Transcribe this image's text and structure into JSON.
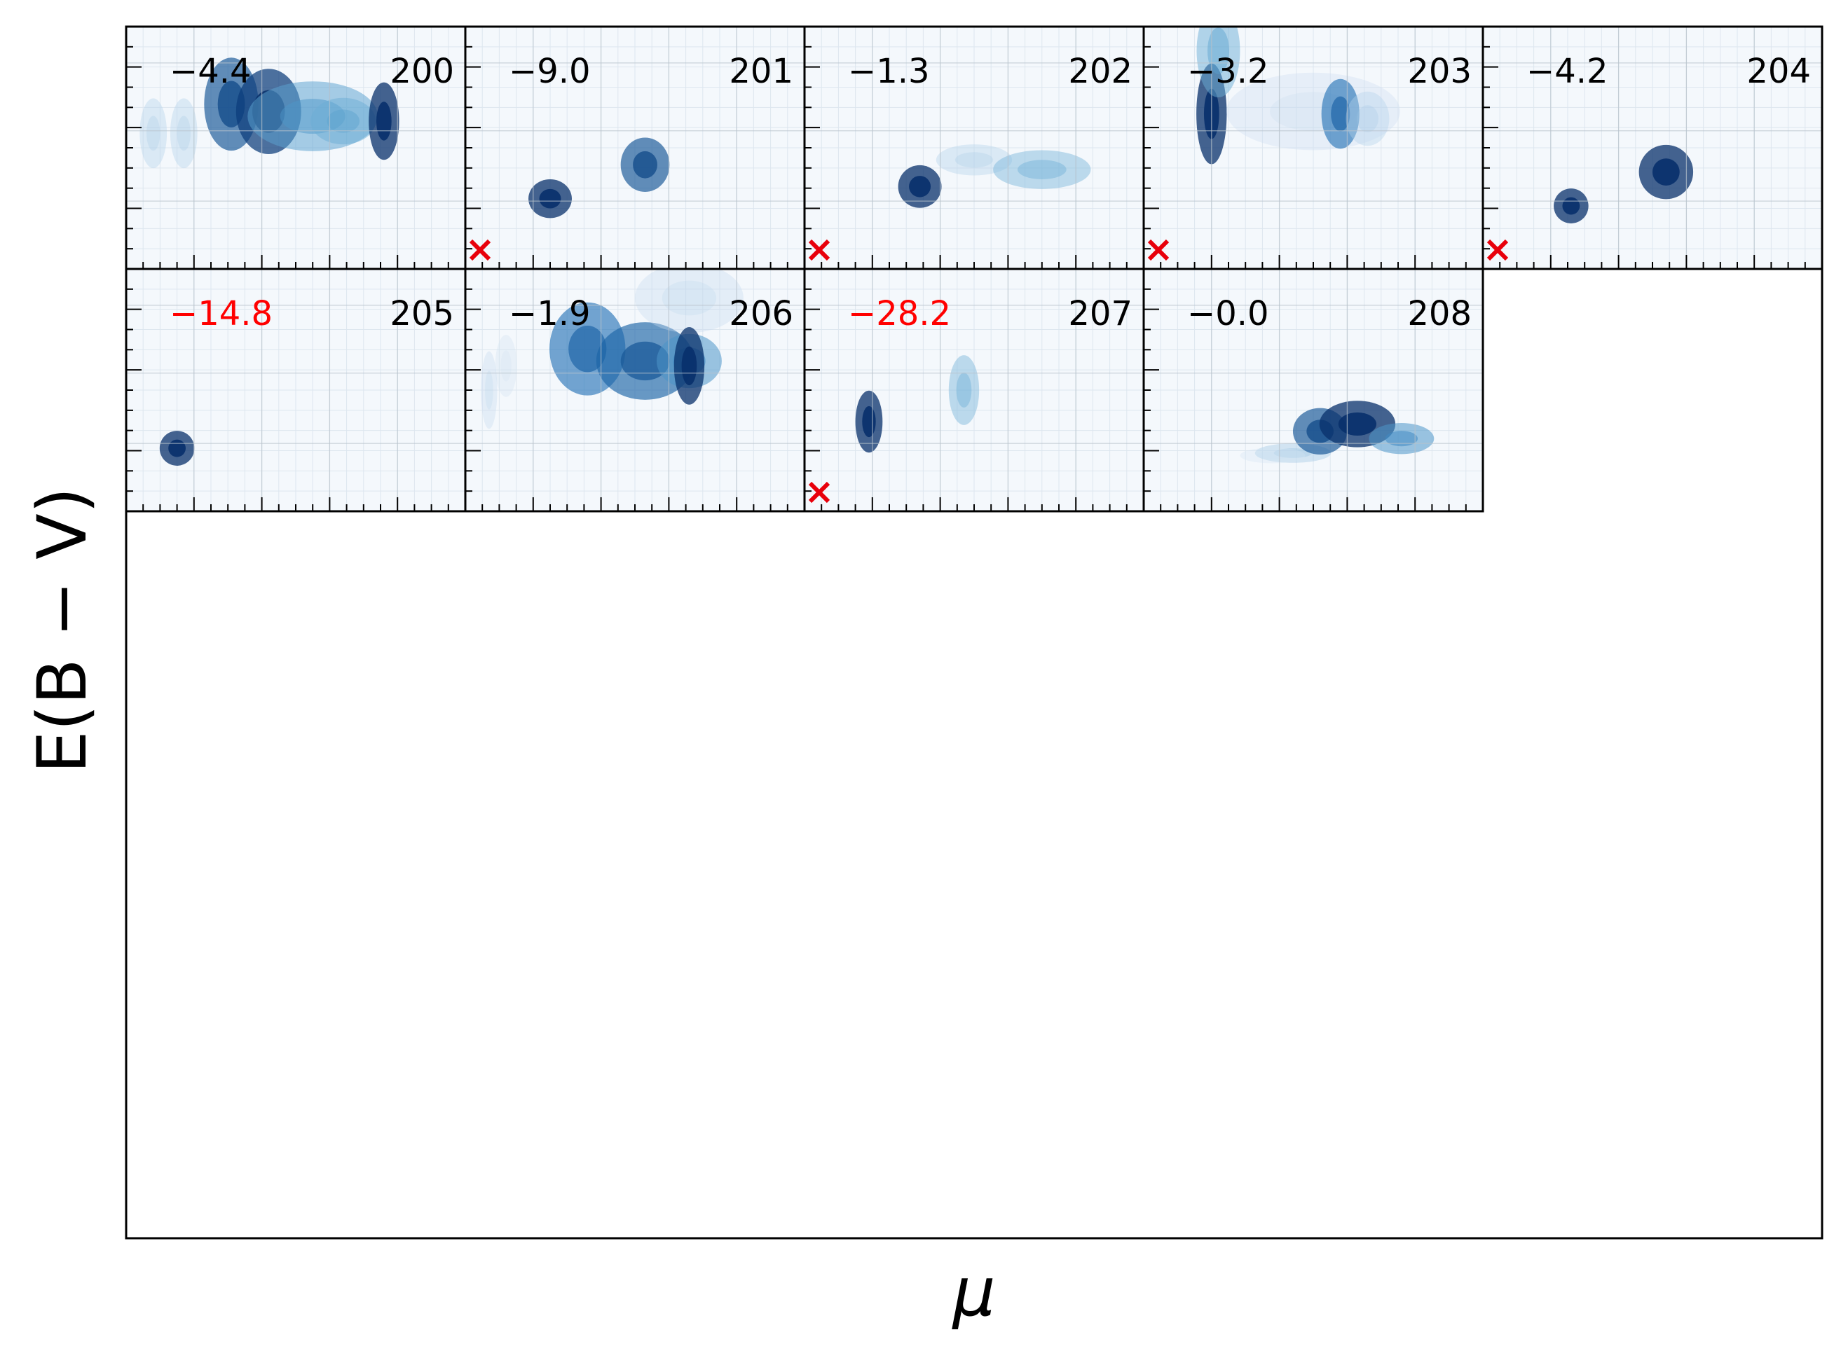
{
  "figure": {
    "xlabel": "μ",
    "ylabel": "E(B − V)",
    "accent_colors": {
      "cmap": "Blues",
      "flag_marker": "#e8000b",
      "flag_text": "#ff0000",
      "axis": "#000000"
    }
  },
  "chart_data": {
    "type": "heatmap",
    "layout": {
      "rows": 2,
      "cols": 5
    },
    "panels": [
      {
        "id": "200",
        "score": "−4.4",
        "score_flagged": false,
        "cross_marker": false,
        "blobs": [
          [
            0.08,
            0.44,
            0.025,
            0.09,
            0.3
          ],
          [
            0.17,
            0.44,
            0.025,
            0.09,
            0.3
          ],
          [
            0.31,
            0.32,
            0.05,
            0.12,
            0.85
          ],
          [
            0.42,
            0.35,
            0.06,
            0.11,
            0.95
          ],
          [
            0.55,
            0.37,
            0.12,
            0.09,
            0.55
          ],
          [
            0.64,
            0.39,
            0.06,
            0.06,
            0.5
          ],
          [
            0.76,
            0.39,
            0.028,
            0.1,
            1.0
          ]
        ]
      },
      {
        "id": "201",
        "score": "−9.0",
        "score_flagged": false,
        "cross_marker": true,
        "blobs": [
          [
            0.25,
            0.71,
            0.04,
            0.05,
            1.0
          ],
          [
            0.53,
            0.57,
            0.045,
            0.07,
            0.85
          ]
        ]
      },
      {
        "id": "202",
        "score": "−1.3",
        "score_flagged": false,
        "cross_marker": true,
        "blobs": [
          [
            0.34,
            0.66,
            0.04,
            0.055,
            1.0
          ],
          [
            0.5,
            0.55,
            0.07,
            0.04,
            0.3
          ],
          [
            0.7,
            0.59,
            0.09,
            0.05,
            0.45
          ]
        ]
      },
      {
        "id": "203",
        "score": "−3.2",
        "score_flagged": false,
        "cross_marker": true,
        "blobs": [
          [
            0.2,
            0.36,
            0.028,
            0.13,
            1.0
          ],
          [
            0.22,
            0.1,
            0.04,
            0.12,
            0.5
          ],
          [
            0.5,
            0.35,
            0.16,
            0.1,
            0.22
          ],
          [
            0.58,
            0.36,
            0.035,
            0.09,
            0.75
          ],
          [
            0.66,
            0.38,
            0.04,
            0.07,
            0.3
          ]
        ]
      },
      {
        "id": "204",
        "score": "−4.2",
        "score_flagged": false,
        "cross_marker": true,
        "blobs": [
          [
            0.26,
            0.74,
            0.032,
            0.045,
            1.0
          ],
          [
            0.54,
            0.6,
            0.05,
            0.07,
            1.0
          ]
        ]
      },
      {
        "id": "205",
        "score": "−14.8",
        "score_flagged": true,
        "cross_marker": false,
        "blobs": [
          [
            0.15,
            0.74,
            0.032,
            0.045,
            1.0
          ]
        ]
      },
      {
        "id": "206",
        "score": "−1.9",
        "score_flagged": false,
        "cross_marker": false,
        "blobs": [
          [
            0.07,
            0.5,
            0.015,
            0.1,
            0.25
          ],
          [
            0.12,
            0.4,
            0.02,
            0.08,
            0.2
          ],
          [
            0.36,
            0.33,
            0.07,
            0.12,
            0.75
          ],
          [
            0.53,
            0.38,
            0.09,
            0.1,
            0.8
          ],
          [
            0.66,
            0.38,
            0.06,
            0.07,
            0.6
          ],
          [
            0.66,
            0.12,
            0.1,
            0.09,
            0.25
          ],
          [
            0.66,
            0.4,
            0.028,
            0.1,
            1.0
          ]
        ]
      },
      {
        "id": "207",
        "score": "−28.2",
        "score_flagged": true,
        "cross_marker": true,
        "blobs": [
          [
            0.19,
            0.63,
            0.025,
            0.08,
            1.0
          ],
          [
            0.47,
            0.5,
            0.028,
            0.09,
            0.45
          ]
        ]
      },
      {
        "id": "208",
        "score": "−0.0",
        "score_flagged": false,
        "cross_marker": false,
        "blobs": [
          [
            0.44,
            0.76,
            0.07,
            0.025,
            0.35
          ],
          [
            0.52,
            0.67,
            0.05,
            0.06,
            0.85
          ],
          [
            0.63,
            0.64,
            0.07,
            0.06,
            1.0
          ],
          [
            0.76,
            0.7,
            0.06,
            0.04,
            0.6
          ],
          [
            0.38,
            0.77,
            0.06,
            0.02,
            0.18
          ]
        ]
      }
    ]
  }
}
